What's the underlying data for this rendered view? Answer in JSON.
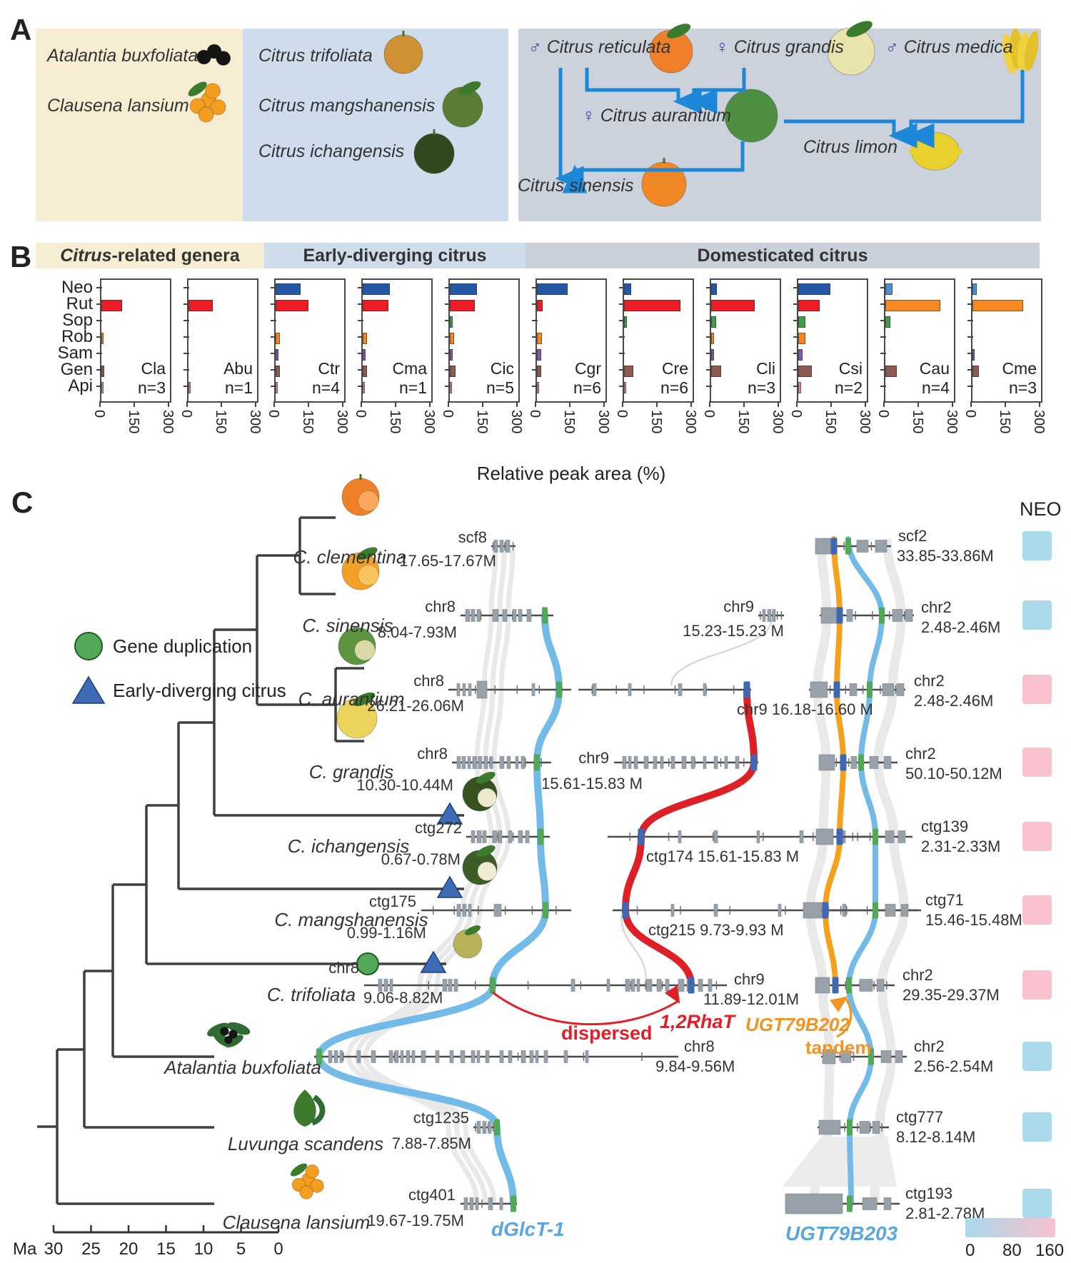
{
  "panelA": {
    "label": "A",
    "related_genera": {
      "bg": "#f7edd3",
      "species": [
        {
          "name": "Atalantia buxfoliata",
          "fruit": "black-berries"
        },
        {
          "name": "Clausena lansium",
          "fruit": "orange-cluster"
        }
      ]
    },
    "early_diverging": {
      "bg": "#cfdcec",
      "species": [
        {
          "name": "Citrus  trifoliata",
          "fruit": "trifoliate-orange"
        },
        {
          "name": "Citrus mangshanensis",
          "fruit": "green-mandarin"
        },
        {
          "name": "Citrus ichangensis",
          "fruit": "dark-green-papeda"
        }
      ]
    },
    "domesticated": {
      "bg": "#ccd2dc",
      "parents": [
        {
          "symbol": "♂",
          "name": "Citrus reticulata",
          "fruit": "mandarin"
        },
        {
          "symbol": "♀",
          "name": "Citrus grandis",
          "fruit": "pomelo"
        },
        {
          "symbol": "♂",
          "name": "Citrus medica",
          "fruit": "citron"
        }
      ],
      "hybrids": [
        {
          "symbol": "♀",
          "name": "Citrus aurantium",
          "fruit": "sour-orange"
        },
        {
          "symbol": "",
          "name": "Citrus limon",
          "fruit": "lemon"
        },
        {
          "symbol": "",
          "name": "Citrus sinensis",
          "fruit": "sweet-orange"
        }
      ],
      "arrow_color": "#1d87d8"
    }
  },
  "panelB": {
    "label": "B",
    "group_headers": [
      {
        "label_italic": "Citrus",
        "label_rest": "-related genera",
        "bg": "#f7edd3"
      },
      {
        "label_italic": "",
        "label_rest": "Early-diverging citrus",
        "bg": "#cfdcec"
      },
      {
        "label_italic": "",
        "label_rest": "Domesticated citrus",
        "bg": "#c9d0da"
      }
    ],
    "xlabel": "Relative peak area (%)"
  },
  "chart_data": {
    "type": "bar",
    "orientation": "horizontal",
    "categories": [
      "Neo",
      "Rut",
      "Sop",
      "Rob",
      "Sam",
      "Gen",
      "Api"
    ],
    "x_ticks": [
      0,
      150,
      300
    ],
    "xlim": [
      0,
      330
    ],
    "xlabel": "Relative peak area (%)",
    "palette": {
      "Neo": "#2457a5",
      "Rut": "#ee1c25",
      "Sop": "#3f9e49",
      "Rob": "#f6851f",
      "Sam": "#7d5ba6",
      "Gen": "#8c5a50",
      "Api": "#d583b5"
    },
    "charts": [
      {
        "name": "Cla",
        "n": "n=3",
        "values": [
          0,
          90,
          0,
          8,
          0,
          12,
          10
        ]
      },
      {
        "name": "Abu",
        "n": "n=1",
        "values": [
          0,
          105,
          0,
          0,
          0,
          0,
          10
        ]
      },
      {
        "name": "Ctr",
        "n": "n=4",
        "values": [
          108,
          143,
          0,
          18,
          14,
          18,
          10
        ]
      },
      {
        "name": "Cma",
        "n": "n=1",
        "values": [
          118,
          112,
          0,
          20,
          14,
          18,
          8
        ]
      },
      {
        "name": "Cic",
        "n": "n=5",
        "values": [
          118,
          110,
          14,
          18,
          14,
          26,
          10
        ]
      },
      {
        "name": "Cgr",
        "n": "n=6",
        "values": [
          133,
          25,
          0,
          22,
          20,
          20,
          8
        ]
      },
      {
        "name": "Cre",
        "n": "n=6",
        "values": [
          30,
          248,
          14,
          0,
          0,
          40,
          8
        ]
      },
      {
        "name": "Cli",
        "n": "n=3",
        "values": [
          25,
          192,
          22,
          14,
          12,
          45,
          0
        ]
      },
      {
        "name": "Csi",
        "n": "n=2",
        "values": [
          140,
          95,
          30,
          30,
          18,
          58,
          14
        ]
      },
      {
        "name": "Cau",
        "n": "n=4",
        "values": [
          30,
          242,
          22,
          0,
          0,
          50,
          0
        ],
        "color_overrides": {
          "Neo": "#4b8fd5",
          "Rut": "#f6891f"
        }
      },
      {
        "name": "Cme",
        "n": "n=3",
        "values": [
          20,
          222,
          0,
          0,
          8,
          28,
          0
        ],
        "color_overrides": {
          "Neo": "#4b8fd5",
          "Rut": "#f6891f"
        }
      }
    ]
  },
  "panelC": {
    "label": "C",
    "legend": [
      {
        "marker": "circle",
        "color": "#53a858",
        "label": "Gene duplication"
      },
      {
        "marker": "triangle",
        "color": "#3f6ab5",
        "label": "Early-diverging citrus"
      }
    ],
    "neo_header": "NEO",
    "colorbar": {
      "ticks": [
        "0",
        "80",
        "160"
      ],
      "left_color": "#a9d9ea",
      "right_color": "#f9c0ce"
    },
    "time_axis": {
      "unit": "Ma",
      "ticks": [
        "30",
        "25",
        "20",
        "15",
        "10",
        "5",
        "0"
      ]
    },
    "gene_labels": {
      "dispersed": "dispersed",
      "rhat": "1,2RhaT",
      "ugt202": "UGT79B202",
      "tandem": "tandem",
      "dglct": "dGlcT-1",
      "ugt203": "UGT79B203"
    },
    "ribbon_colors": {
      "dglct": "#72bbe8",
      "rhat": "#df1f26",
      "tandem_ugt202": "#f5a11c",
      "ugt203": "#72bbe8"
    },
    "rows": [
      {
        "species": "C. clementina",
        "left": {
          "name": "scf8",
          "range": "17.65-17.67M"
        },
        "mid": null,
        "right": {
          "name": "scf2",
          "range": "33.85-33.86M"
        },
        "neo": "blue"
      },
      {
        "species": "C. sinensis",
        "left": {
          "name": "chr8",
          "range": "8.04-7.93M"
        },
        "mid": {
          "name": "chr9",
          "range": "15.23-15.23 M"
        },
        "right": {
          "name": "chr2",
          "range": "2.48-2.46M"
        },
        "neo": "blue"
      },
      {
        "species": "C. aurantium",
        "left": {
          "name": "chr8",
          "range": "26.21-26.06M"
        },
        "mid": {
          "name": "chr9",
          "range": "16.18-16.60 M"
        },
        "right": {
          "name": "chr2",
          "range": "2.48-2.46M"
        },
        "neo": "pink"
      },
      {
        "species": "C. grandis",
        "left": {
          "name": "chr8",
          "range": "10.30-10.44M"
        },
        "mid": {
          "name": "chr9",
          "range": "15.61-15.83 M"
        },
        "right": {
          "name": "chr2",
          "range": "50.10-50.12M"
        },
        "neo": "pink"
      },
      {
        "species": "C. ichangensis",
        "left": {
          "name": "ctg272",
          "range": "0.67-0.78M"
        },
        "mid": {
          "name": "ctg174",
          "range": "15.61-15.83 M"
        },
        "right": {
          "name": "ctg139",
          "range": "2.31-2.33M"
        },
        "neo": "pink",
        "tip_marker": "triangle"
      },
      {
        "species": "C. mangshanensis",
        "left": {
          "name": "ctg175",
          "range": "0.99-1.16M"
        },
        "mid": {
          "name": "ctg215",
          "range": "9.73-9.93 M"
        },
        "right": {
          "name": "ctg71",
          "range": "15.46-15.48M"
        },
        "neo": "pink",
        "tip_marker": "triangle"
      },
      {
        "species": "C. trifoliata",
        "left": {
          "name": "chr8",
          "range": "9.06-8.82M"
        },
        "mid": {
          "name": "chr9",
          "range": "11.89-12.01M"
        },
        "right": {
          "name": "chr2",
          "range": "29.35-29.37M"
        },
        "neo": "pink",
        "tip_marker": "triangle",
        "branch_marker": "circle"
      },
      {
        "species": "Atalantia buxfoliata",
        "left": {
          "name": "chr8",
          "range": "9.84-9.56M"
        },
        "mid": null,
        "right": {
          "name": "chr2",
          "range": "2.56-2.54M"
        },
        "neo": "blue"
      },
      {
        "species": "Luvunga scandens",
        "left": {
          "name": "ctg1235",
          "range": "7.88-7.85M"
        },
        "mid": null,
        "right": {
          "name": "ctg777",
          "range": "8.12-8.14M"
        },
        "neo": "blue"
      },
      {
        "species": "Clausena lansium",
        "left": {
          "name": "ctg401",
          "range": "19.67-19.75M"
        },
        "mid": null,
        "right": {
          "name": "ctg193",
          "range": "2.81-2.78M"
        },
        "neo": "blue"
      }
    ]
  }
}
